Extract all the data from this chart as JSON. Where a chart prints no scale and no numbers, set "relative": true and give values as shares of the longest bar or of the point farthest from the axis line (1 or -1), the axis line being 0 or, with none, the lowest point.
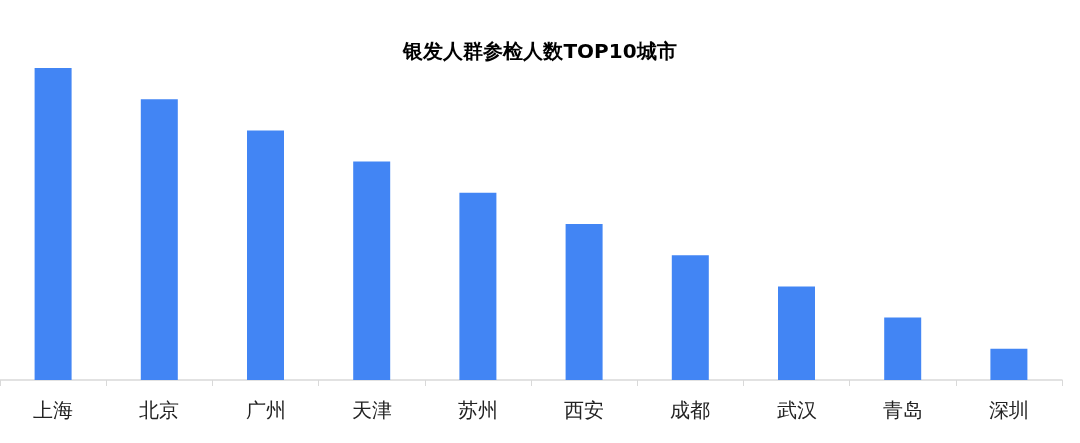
{
  "chart_data": {
    "type": "bar",
    "title": "银发人群参检人数TOP10城市",
    "categories": [
      "上海",
      "北京",
      "广州",
      "天津",
      "苏州",
      "西安",
      "成都",
      "武汉",
      "青岛",
      "深圳"
    ],
    "values": [
      1,
      0.9,
      0.8,
      0.7,
      0.6,
      0.5,
      0.4,
      0.3,
      0.2,
      0.1
    ],
    "color": "#4285f4",
    "relative": true
  }
}
